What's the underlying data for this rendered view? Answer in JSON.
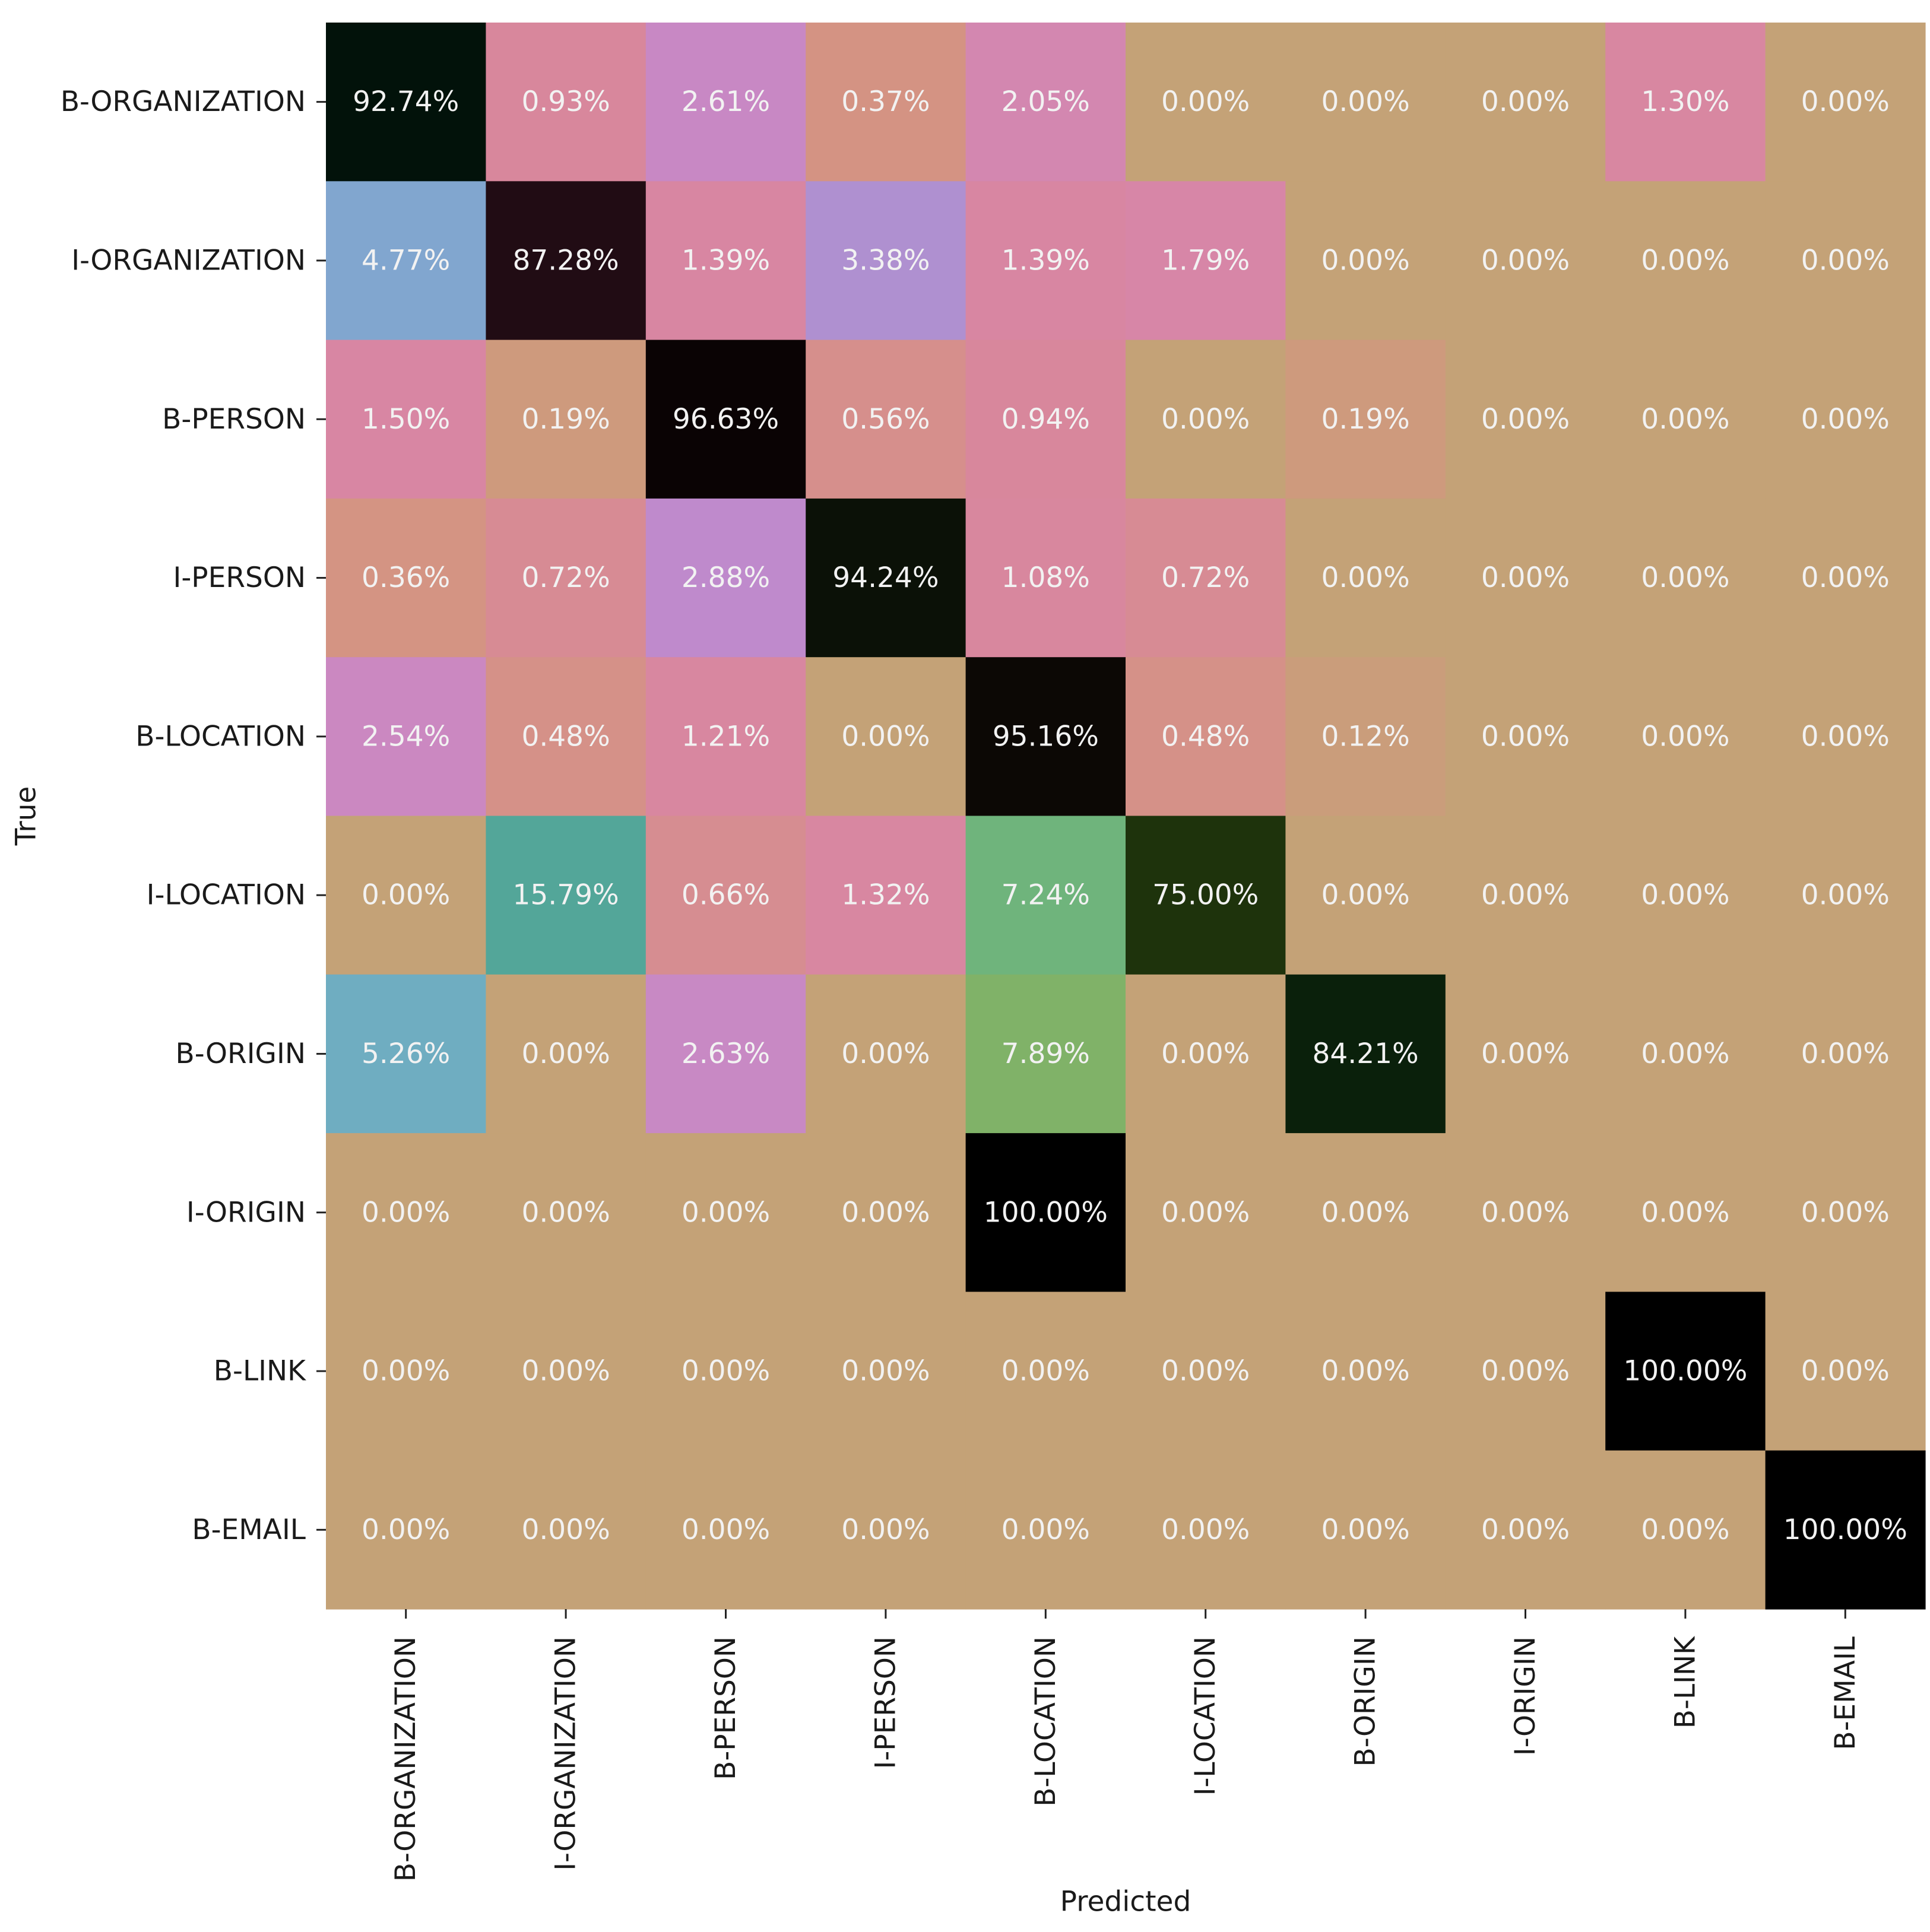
{
  "chart_data": {
    "type": "heatmap",
    "title": "",
    "xlabel": "Predicted",
    "ylabel": "True",
    "value_format": "percent_2dp",
    "row_labels": [
      "B-ORGANIZATION",
      "I-ORGANIZATION",
      "B-PERSON",
      "I-PERSON",
      "B-LOCATION",
      "I-LOCATION",
      "B-ORIGIN",
      "I-ORIGIN",
      "B-LINK",
      "B-EMAIL"
    ],
    "col_labels": [
      "B-ORGANIZATION",
      "I-ORGANIZATION",
      "B-PERSON",
      "I-PERSON",
      "B-LOCATION",
      "I-LOCATION",
      "B-ORIGIN",
      "I-ORIGIN",
      "B-LINK",
      "B-EMAIL"
    ],
    "values": [
      [
        92.74,
        0.93,
        2.61,
        0.37,
        2.05,
        0.0,
        0.0,
        0.0,
        1.3,
        0.0
      ],
      [
        4.77,
        87.28,
        1.39,
        3.38,
        1.39,
        1.79,
        0.0,
        0.0,
        0.0,
        0.0
      ],
      [
        1.5,
        0.19,
        96.63,
        0.56,
        0.94,
        0.0,
        0.19,
        0.0,
        0.0,
        0.0
      ],
      [
        0.36,
        0.72,
        2.88,
        94.24,
        1.08,
        0.72,
        0.0,
        0.0,
        0.0,
        0.0
      ],
      [
        2.54,
        0.48,
        1.21,
        0.0,
        95.16,
        0.48,
        0.12,
        0.0,
        0.0,
        0.0
      ],
      [
        0.0,
        15.79,
        0.66,
        1.32,
        7.24,
        75.0,
        0.0,
        0.0,
        0.0,
        0.0
      ],
      [
        5.26,
        0.0,
        2.63,
        0.0,
        7.89,
        0.0,
        84.21,
        0.0,
        0.0,
        0.0
      ],
      [
        0.0,
        0.0,
        0.0,
        0.0,
        100.0,
        0.0,
        0.0,
        0.0,
        0.0,
        0.0
      ],
      [
        0.0,
        0.0,
        0.0,
        0.0,
        0.0,
        0.0,
        0.0,
        0.0,
        100.0,
        0.0
      ],
      [
        0.0,
        0.0,
        0.0,
        0.0,
        0.0,
        0.0,
        0.0,
        0.0,
        0.0,
        100.0
      ]
    ],
    "colorbar": false,
    "colormap_stops": [
      {
        "value": 0.0,
        "color": "#c4a277"
      },
      {
        "value": 0.3,
        "color": "#d49580"
      },
      {
        "value": 0.9,
        "color": "#d8879c"
      },
      {
        "value": 1.75,
        "color": "#d886a6"
      },
      {
        "value": 2.5,
        "color": "#cc88c0"
      },
      {
        "value": 3.0,
        "color": "#bb8ad0"
      },
      {
        "value": 4.8,
        "color": "#80a6cf"
      },
      {
        "value": 5.3,
        "color": "#6eaec0"
      },
      {
        "value": 7.3,
        "color": "#6fb47a"
      },
      {
        "value": 7.9,
        "color": "#80b268"
      },
      {
        "value": 15.8,
        "color": "#53a699"
      },
      {
        "value": 75.0,
        "color": "#1e330c"
      },
      {
        "value": 84.2,
        "color": "#0a200b"
      },
      {
        "value": 87.3,
        "color": "#210c14"
      },
      {
        "value": 92.7,
        "color": "#02120a"
      },
      {
        "value": 94.2,
        "color": "#0b1107"
      },
      {
        "value": 95.2,
        "color": "#0c0805"
      },
      {
        "value": 96.6,
        "color": "#0a0304"
      },
      {
        "value": 100.0,
        "color": "#000000"
      }
    ],
    "annotation_color": "#f2f2f2"
  }
}
